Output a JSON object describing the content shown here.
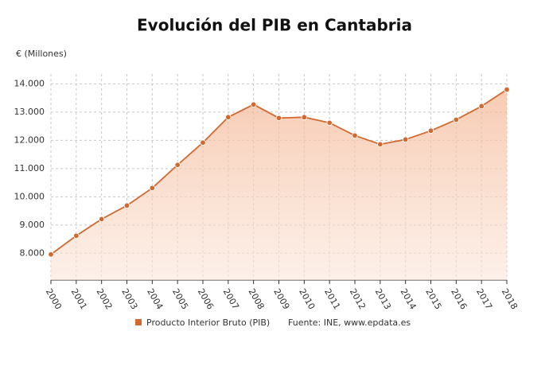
{
  "chart_data": {
    "type": "line",
    "title": "Evolución del PIB en Cantabria",
    "y_label": "€ (Millones)",
    "categories": [
      "2000",
      "2001",
      "2002",
      "2003",
      "2004",
      "2005",
      "2006",
      "2007",
      "2008",
      "2009",
      "2010",
      "2011",
      "2012",
      "2013",
      "2014",
      "2015",
      "2016",
      "2017",
      "2018"
    ],
    "series": [
      {
        "name": "Producto Interior Bruto (PIB)",
        "color": "#d2692f",
        "values": [
          7960,
          8620,
          9210,
          9690,
          10310,
          11130,
          11920,
          12820,
          13270,
          12790,
          12820,
          12620,
          12170,
          11860,
          12030,
          12340,
          12730,
          13210,
          13800
        ]
      }
    ],
    "source": "Fuente: INE, www.epdata.es",
    "ylim": [
      7050,
      14350
    ],
    "yticks": [
      {
        "value": 8000,
        "label": "8.000"
      },
      {
        "value": 9000,
        "label": "9.000"
      },
      {
        "value": 10000,
        "label": "10.000"
      },
      {
        "value": 11000,
        "label": "11.000"
      },
      {
        "value": 12000,
        "label": "12.000"
      },
      {
        "value": 13000,
        "label": "13.000"
      },
      {
        "value": 14000,
        "label": "14.000"
      }
    ],
    "grid": true
  }
}
